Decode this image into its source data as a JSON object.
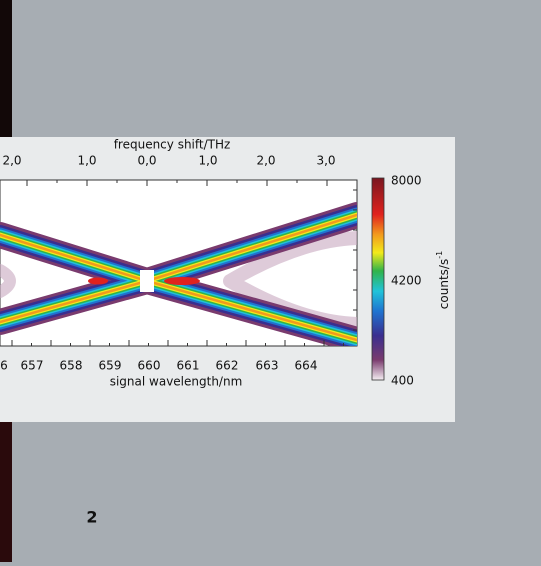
{
  "figure": {
    "top_axis_title": "frequency shift/THz",
    "top_ticks": [
      "2,0",
      "1,0",
      "0,0",
      "1,0",
      "2,0",
      "3,0"
    ],
    "bottom_ticks": [
      "6",
      "657",
      "658",
      "659",
      "660",
      "661",
      "662",
      "663",
      "664"
    ],
    "bottom_axis_title": "signal wavelength/nm",
    "colorbar_ticks": [
      "8000",
      "4200",
      "400"
    ],
    "colorbar_title": "counts/s",
    "colorbar_title_sup": "-1"
  },
  "page_number": "2"
}
